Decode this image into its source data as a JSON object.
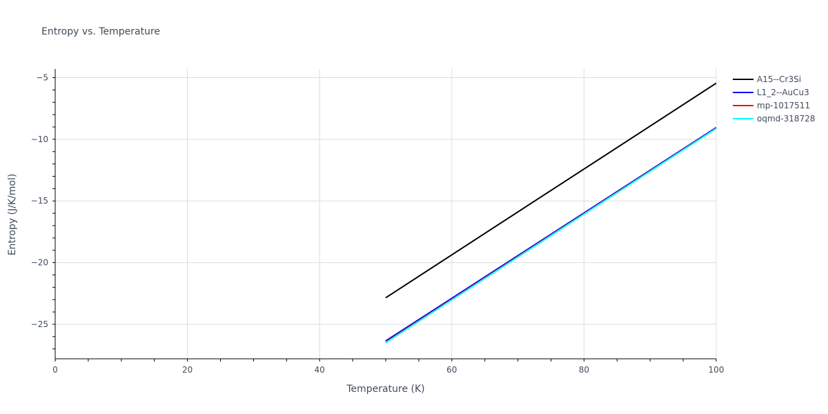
{
  "chart_data": {
    "type": "line",
    "title": "Entropy vs. Temperature",
    "xlabel": "Temperature (K)",
    "ylabel": "Entropy (J/K/mol)",
    "xlim": [
      0,
      100
    ],
    "ylim": [
      -27.8,
      -4.3
    ],
    "x_ticks": [
      0,
      20,
      40,
      60,
      80,
      100
    ],
    "x_tick_labels": [
      "0",
      "20",
      "40",
      "60",
      "80",
      "100"
    ],
    "y_ticks": [
      -5,
      -10,
      -15,
      -20,
      -25
    ],
    "y_tick_labels": [
      "−5",
      "−10",
      "−15",
      "−20",
      "−25"
    ],
    "grid": true,
    "legend_position": "top-right",
    "series": [
      {
        "name": "A15--Cr3Si",
        "color": "#000000",
        "x": [
          50,
          100
        ],
        "y": [
          -22.85,
          -5.45
        ]
      },
      {
        "name": "L1_2--AuCu3",
        "color": "#0000ff",
        "x": [
          50,
          100
        ],
        "y": [
          -26.35,
          -9.05
        ]
      },
      {
        "name": "mp-1017511",
        "color": "#ff0000",
        "x": [
          50,
          100
        ],
        "y": [
          -26.45,
          -9.1
        ]
      },
      {
        "name": "oqmd-318728",
        "color": "#00ffff",
        "x": [
          50,
          100
        ],
        "y": [
          -26.5,
          -9.12
        ]
      }
    ]
  }
}
